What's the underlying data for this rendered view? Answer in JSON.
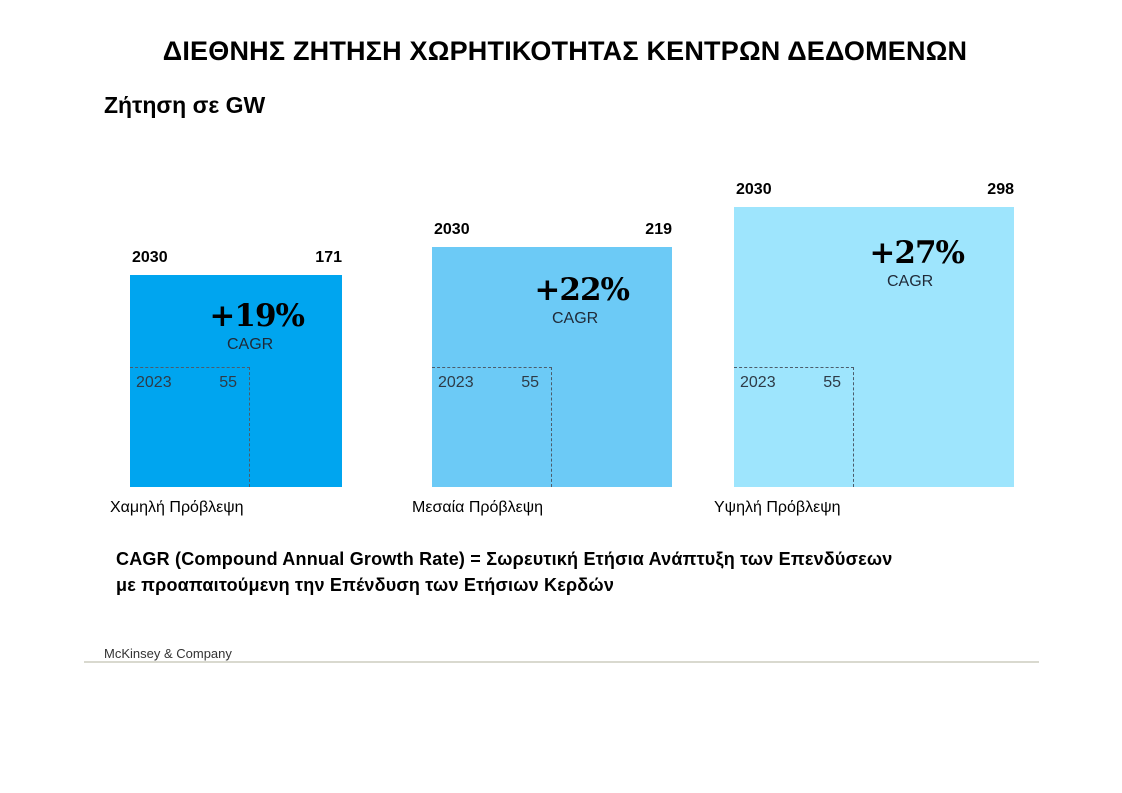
{
  "header": {
    "title": "ΔΙΕΘΝΗΣ ΖΗΤΗΣΗ ΧΩΡΗΤΙΚΟΤΗΤΑΣ ΚΕΝΤΡΩΝ ΔΕΔΟΜΕΝΩΝ",
    "subtitle": "Ζήτηση σε GW"
  },
  "chart_data": {
    "type": "area-squares",
    "title": "ΔΙΕΘΝΗΣ ΖΗΤΗΣΗ ΧΩΡΗΤΙΚΟΤΗΤΑΣ ΚΕΝΤΡΩΝ ΔΕΔΟΜΕΝΩΝ",
    "unit": "GW",
    "series": [
      {
        "name": "Χαμηλή Πρόβλεψη",
        "year_end": "2030",
        "value_end": 171,
        "year_start": "2023",
        "value_start": 55,
        "growth": "+19%",
        "growth_label": "CAGR",
        "color": "#00a5ef"
      },
      {
        "name": "Μεσαία Πρόβλεψη",
        "year_end": "2030",
        "value_end": 219,
        "year_start": "2023",
        "value_start": 55,
        "growth": "+22%",
        "growth_label": "CAGR",
        "color": "#6ccaf6"
      },
      {
        "name": "Υψηλή Πρόβλεψη",
        "year_end": "2030",
        "value_end": 298,
        "year_start": "2023",
        "value_start": 55,
        "growth": "+27%",
        "growth_label": "CAGR",
        "color": "#9ee5fd"
      }
    ]
  },
  "note": {
    "line1": "CAGR (Compound Annual Growth Rate) = Σωρευτική Ετήσια Ανάπτυξη των Επενδύσεων",
    "line2": "με προαπαιτούμενη την Επένδυση των Ετήσιων Κερδών"
  },
  "footer": {
    "source": "McKinsey & Company"
  }
}
